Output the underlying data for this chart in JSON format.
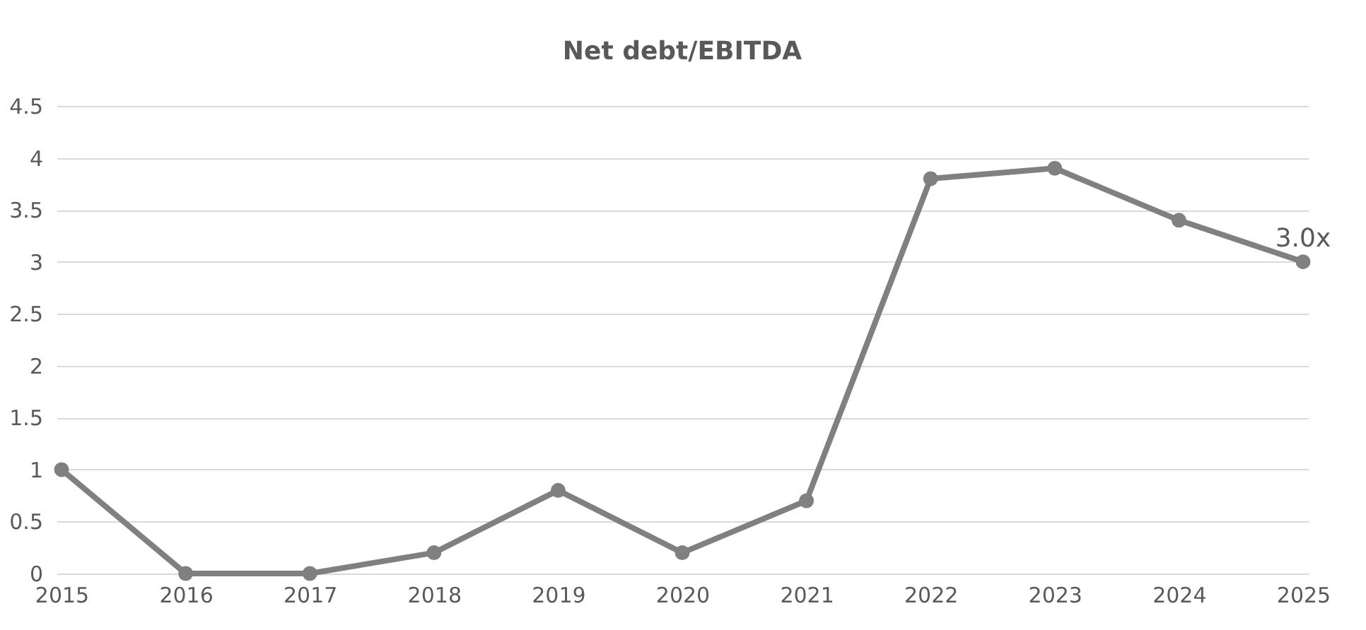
{
  "chart_data": {
    "type": "line",
    "title": "Net debt/EBITDA",
    "categories": [
      "2015",
      "2016",
      "2017",
      "2018",
      "2019",
      "2020",
      "2021",
      "2022",
      "2023",
      "2024",
      "2025"
    ],
    "series": [
      {
        "color": "#808080",
        "values": [
          1,
          0,
          0,
          0.2,
          0.8,
          0.2,
          0.7,
          3.8,
          3.9,
          3.4,
          3.0
        ],
        "value_labels": [
          null,
          null,
          null,
          null,
          null,
          null,
          null,
          null,
          null,
          null,
          "3.0x"
        ]
      }
    ],
    "ylim": [
      0,
      4.5
    ],
    "yticks": [
      0,
      0.5,
      1,
      1.5,
      2,
      2.5,
      3,
      3.5,
      4,
      4.5
    ],
    "grid": "y",
    "legend": false,
    "marker": "circle",
    "line_style": "solid"
  }
}
